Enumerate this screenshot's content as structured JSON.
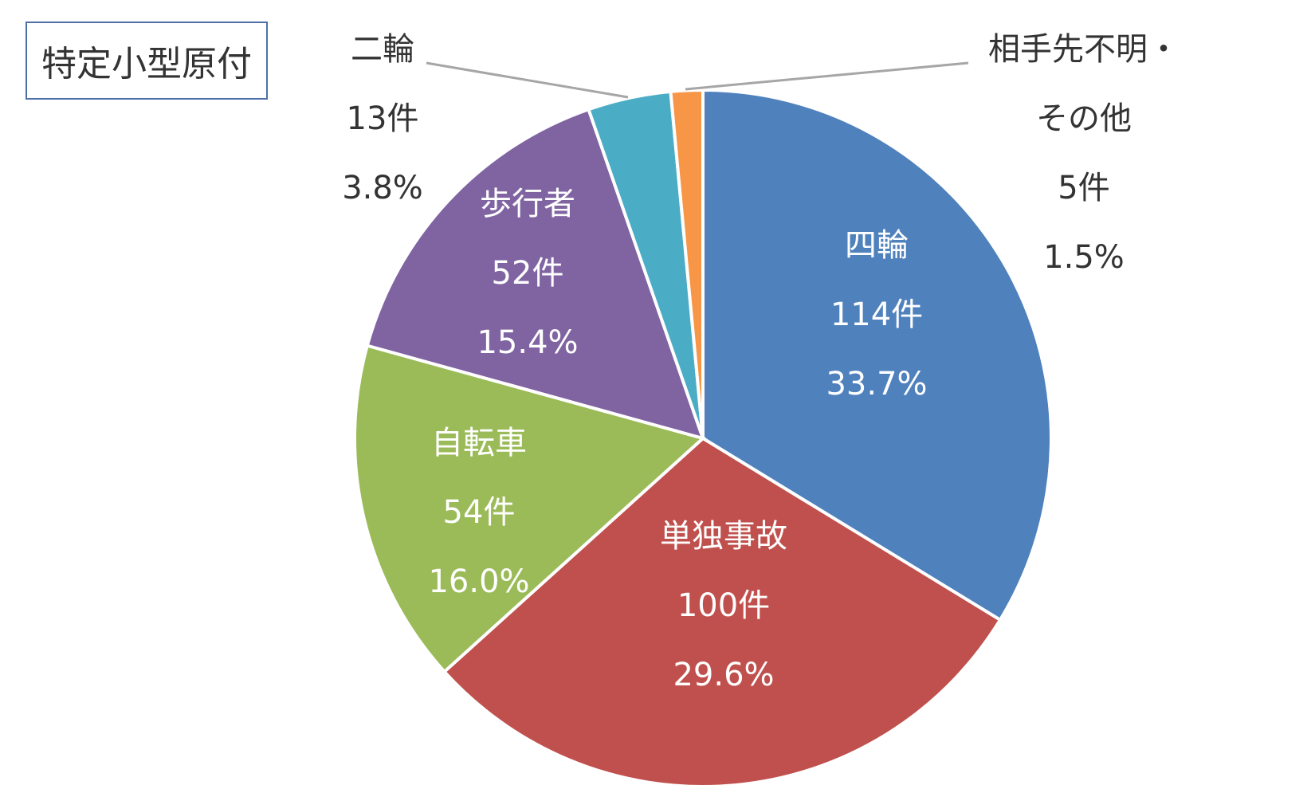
{
  "chart_data": {
    "type": "pie",
    "title": "特定小型原付",
    "slices": [
      {
        "name": "四輪",
        "count_label": "114件",
        "pct_label": "33.7%",
        "value": 114,
        "percent": 33.7,
        "color": "#4f81bd",
        "label_color": "#ffffff"
      },
      {
        "name": "単独事故",
        "count_label": "100件",
        "pct_label": "29.6%",
        "value": 100,
        "percent": 29.6,
        "color": "#c0504d",
        "label_color": "#ffffff"
      },
      {
        "name": "自転車",
        "count_label": "54件",
        "pct_label": "16.0%",
        "value": 54,
        "percent": 16.0,
        "color": "#9bbb59",
        "label_color": "#ffffff"
      },
      {
        "name": "歩行者",
        "count_label": "52件",
        "pct_label": "15.4%",
        "value": 52,
        "percent": 15.4,
        "color": "#8064a2",
        "label_color": "#ffffff"
      },
      {
        "name": "二輪",
        "count_label": "13件",
        "pct_label": "3.8%",
        "value": 13,
        "percent": 3.8,
        "color": "#4bacc6",
        "label_color": "#333333"
      },
      {
        "name": "相手先不明・その他",
        "name_lines": [
          "相手先不明・",
          "その他"
        ],
        "count_label": "5件",
        "pct_label": "1.5%",
        "value": 5,
        "percent": 1.5,
        "color": "#f79646",
        "label_color": "#333333"
      }
    ]
  }
}
